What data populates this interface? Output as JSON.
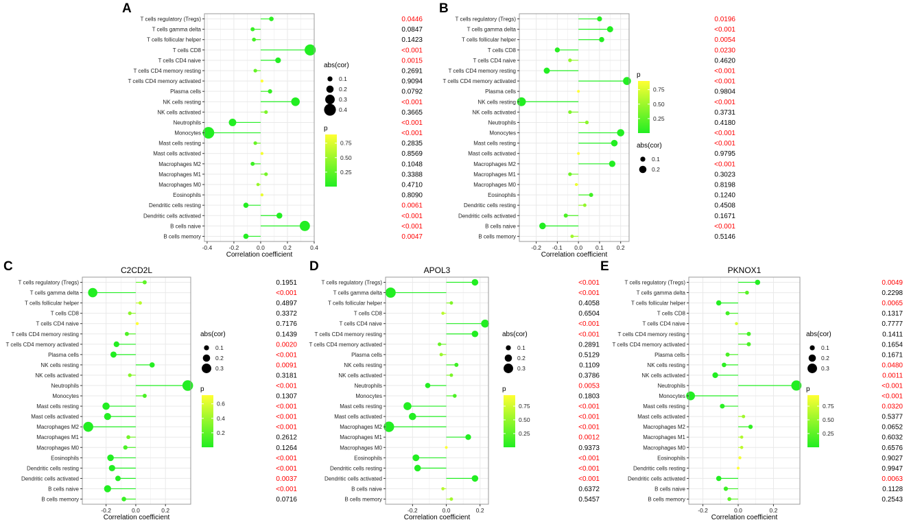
{
  "colors": {
    "sig": "#ff0000",
    "nonsig": "#000000",
    "low": "#22ee22",
    "high": "#ffff33",
    "grid": "#e9e9e9",
    "frame": "#999999",
    "fill": "#00000000"
  },
  "chart_data": [
    {
      "type": "lollipop",
      "panel": "A",
      "title": "",
      "xlabel": "Correlation coefficient",
      "xlim": [
        -0.42,
        0.4
      ],
      "xticks": [
        -0.4,
        -0.2,
        0.0,
        0.2,
        0.4
      ],
      "xtick_labels": [
        "-0.4",
        "-0.2",
        "0.0",
        "0.2",
        "0.4"
      ],
      "categories": [
        "T cells regulatory (Tregs)",
        "T cells gamma delta",
        "T cells follicular helper",
        "T cells CD8",
        "T cells CD4 naive",
        "T cells CD4 memory resting",
        "T cells CD4 memory activated",
        "Plasma cells",
        "NK cells resting",
        "NK cells activated",
        "Neutrophils",
        "Monocytes",
        "Mast cells resting",
        "Mast cells activated",
        "Macrophages M2",
        "Macrophages M1",
        "Macrophages M0",
        "Eosinophils",
        "Dendritic cells resting",
        "Dendritic cells activated",
        "B cells naive",
        "B cells memory"
      ],
      "values": [
        0.08,
        -0.06,
        -0.05,
        0.37,
        0.13,
        -0.04,
        0.01,
        0.07,
        0.26,
        0.04,
        -0.21,
        -0.39,
        -0.04,
        0.01,
        -0.06,
        0.04,
        -0.02,
        0.01,
        -0.11,
        0.14,
        0.33,
        -0.11
      ],
      "p_values": [
        0.0446,
        0.0847,
        0.1423,
        0.0001,
        0.0015,
        0.2691,
        0.9094,
        0.0792,
        0.0001,
        0.3665,
        0.0001,
        0.0001,
        0.2835,
        0.8569,
        0.1048,
        0.3388,
        0.471,
        0.809,
        0.0061,
        0.0001,
        0.0001,
        0.0047
      ],
      "p_labels": [
        "0.0446",
        "0.0847",
        "0.1423",
        "<0.001",
        "0.0015",
        "0.2691",
        "0.9094",
        "0.0792",
        "<0.001",
        "0.3665",
        "<0.001",
        "<0.001",
        "0.2835",
        "0.8569",
        "0.1048",
        "0.3388",
        "0.4710",
        "0.8090",
        "0.0061",
        "<0.001",
        "<0.001",
        "0.0047"
      ],
      "size_legend": {
        "title": "abs(cor)",
        "labels": [
          "0.1",
          "0.2",
          "0.3",
          "0.4"
        ],
        "values": [
          0.1,
          0.2,
          0.3,
          0.4
        ]
      },
      "color_legend": {
        "title": "p",
        "labels": [
          "0.75",
          "0.50",
          "0.25"
        ],
        "values": [
          0.75,
          0.5,
          0.25
        ],
        "range": [
          0,
          0.9
        ]
      },
      "legend_order": "size-first"
    },
    {
      "type": "lollipop",
      "panel": "B",
      "title": "",
      "xlabel": "Correlation coefficient",
      "xlim": [
        -0.28,
        0.24
      ],
      "xticks": [
        -0.2,
        -0.1,
        0.0,
        0.1,
        0.2
      ],
      "xtick_labels": [
        "-0.2",
        "-0.1",
        "0.0",
        "0.1",
        "0.2"
      ],
      "categories": [
        "T cells regulatory (Tregs)",
        "T cells gamma delta",
        "T cells follicular helper",
        "T cells CD8",
        "T cells CD4 naive",
        "T cells CD4 memory resting",
        "T cells CD4 memory activated",
        "Plasma cells",
        "NK cells resting",
        "NK cells activated",
        "Neutrophils",
        "Monocytes",
        "Mast cells resting",
        "Mast cells activated",
        "Macrophages M2",
        "Macrophages M1",
        "Macrophages M0",
        "Eosinophils",
        "Dendritic cells resting",
        "Dendritic cells activated",
        "B cells naive",
        "B cells memory"
      ],
      "values": [
        0.1,
        0.15,
        0.11,
        -0.1,
        -0.04,
        -0.15,
        0.23,
        0.0,
        -0.27,
        -0.04,
        0.04,
        0.2,
        0.17,
        0.0,
        0.16,
        -0.04,
        -0.01,
        0.06,
        0.03,
        -0.06,
        -0.17,
        -0.03
      ],
      "p_values": [
        0.0196,
        0.0001,
        0.0054,
        0.023,
        0.462,
        0.0001,
        0.0001,
        0.9804,
        0.0001,
        0.3731,
        0.418,
        0.0001,
        0.0001,
        0.9795,
        0.0001,
        0.3023,
        0.8198,
        0.124,
        0.4508,
        0.1671,
        0.0001,
        0.5146
      ],
      "p_labels": [
        "0.0196",
        "<0.001",
        "0.0054",
        "0.0230",
        "0.4620",
        "<0.001",
        "<0.001",
        "0.9804",
        "<0.001",
        "0.3731",
        "0.4180",
        "<0.001",
        "<0.001",
        "0.9795",
        "<0.001",
        "0.3023",
        "0.8198",
        "0.1240",
        "0.4508",
        "0.1671",
        "<0.001",
        "0.5146"
      ],
      "size_legend": {
        "title": "abs(cor)",
        "labels": [
          "0.1",
          "0.2"
        ],
        "values": [
          0.1,
          0.2
        ]
      },
      "color_legend": {
        "title": "p",
        "labels": [
          "0.75",
          "0.50",
          "0.25"
        ],
        "values": [
          0.75,
          0.5,
          0.25
        ],
        "range": [
          0,
          0.9
        ]
      },
      "legend_order": "color-first"
    },
    {
      "type": "lollipop",
      "panel": "C",
      "title": "C2CD2L",
      "xlabel": "Correlation coefficient",
      "xlim": [
        -0.36,
        0.37
      ],
      "xticks": [
        -0.2,
        0.0,
        0.2
      ],
      "xtick_labels": [
        "-0.2",
        "0.0",
        "0.2"
      ],
      "categories": [
        "T cells regulatory (Tregs)",
        "T cells gamma delta",
        "T cells follicular helper",
        "T cells CD8",
        "T cells CD4 naive",
        "T cells CD4 memory resting",
        "T cells CD4 memory activated",
        "Plasma cells",
        "NK cells resting",
        "NK cells activated",
        "Neutrophils",
        "Monocytes",
        "Mast cells resting",
        "Mast cells activated",
        "Macrophages M2",
        "Macrophages M1",
        "Macrophages M0",
        "Eosinophils",
        "Dendritic cells resting",
        "Dendritic cells activated",
        "B cells naive",
        "B cells memory"
      ],
      "values": [
        0.06,
        -0.29,
        0.03,
        -0.04,
        0.01,
        -0.06,
        -0.13,
        -0.15,
        0.11,
        -0.04,
        0.35,
        0.06,
        -0.2,
        -0.19,
        -0.32,
        -0.05,
        -0.07,
        -0.17,
        -0.16,
        -0.12,
        -0.19,
        -0.08
      ],
      "p_values": [
        0.1951,
        0.0001,
        0.4897,
        0.3372,
        0.7176,
        0.1439,
        0.002,
        0.0001,
        0.0091,
        0.3181,
        0.0001,
        0.1307,
        0.0001,
        0.0001,
        0.0001,
        0.2612,
        0.1264,
        0.0001,
        0.0001,
        0.0037,
        0.0001,
        0.0716
      ],
      "p_labels": [
        "0.1951",
        "<0.001",
        "0.4897",
        "0.3372",
        "0.7176",
        "0.1439",
        "0.0020",
        "<0.001",
        "0.0091",
        "0.3181",
        "<0.001",
        "0.1307",
        "<0.001",
        "<0.001",
        "<0.001",
        "0.2612",
        "0.1264",
        "<0.001",
        "<0.001",
        "0.0037",
        "<0.001",
        "0.0716"
      ],
      "size_legend": {
        "title": "abs(cor)",
        "labels": [
          "0.1",
          "0.2",
          "0.3"
        ],
        "values": [
          0.1,
          0.2,
          0.3
        ]
      },
      "color_legend": {
        "title": "p",
        "labels": [
          "0.6",
          "0.4",
          "0.2"
        ],
        "values": [
          0.6,
          0.4,
          0.2
        ],
        "range": [
          0,
          0.72
        ]
      },
      "legend_order": "size-first"
    },
    {
      "type": "lollipop",
      "panel": "D",
      "title": "APOL3",
      "xlabel": "Correlation coefficient",
      "xlim": [
        -0.36,
        0.25
      ],
      "xticks": [
        -0.2,
        0.0,
        0.2
      ],
      "xtick_labels": [
        "-0.2",
        "0.0",
        "0.2"
      ],
      "categories": [
        "T cells regulatory (Tregs)",
        "T cells gamma delta",
        "T cells follicular helper",
        "T cells CD8",
        "T cells CD4 naive",
        "T cells CD4 memory resting",
        "T cells CD4 memory activated",
        "Plasma cells",
        "NK cells resting",
        "NK cells activated",
        "Neutrophils",
        "Monocytes",
        "Mast cells resting",
        "Mast cells activated",
        "Macrophages M2",
        "Macrophages M1",
        "Macrophages M0",
        "Eosinophils",
        "Dendritic cells resting",
        "Dendritic cells activated",
        "B cells naive",
        "B cells memory"
      ],
      "values": [
        0.17,
        -0.33,
        0.03,
        -0.02,
        0.23,
        0.17,
        -0.04,
        -0.03,
        0.06,
        0.03,
        -0.11,
        0.05,
        -0.23,
        -0.2,
        -0.34,
        0.13,
        0.0,
        -0.18,
        -0.17,
        0.17,
        -0.02,
        0.03
      ],
      "p_values": [
        0.0001,
        0.0001,
        0.4058,
        0.6504,
        0.0001,
        0.0001,
        0.2891,
        0.5129,
        0.1109,
        0.3786,
        0.0053,
        0.1803,
        0.0001,
        0.0001,
        0.0001,
        0.0012,
        0.9373,
        0.0001,
        0.0001,
        0.0001,
        0.6372,
        0.5457
      ],
      "p_labels": [
        "<0.001",
        "<0.001",
        "0.4058",
        "0.6504",
        "<0.001",
        "<0.001",
        "0.2891",
        "0.5129",
        "0.1109",
        "0.3786",
        "0.0053",
        "0.1803",
        "<0.001",
        "<0.001",
        "<0.001",
        "0.0012",
        "0.9373",
        "<0.001",
        "<0.001",
        "<0.001",
        "0.6372",
        "0.5457"
      ],
      "size_legend": {
        "title": "abs(cor)",
        "labels": [
          "0.1",
          "0.2",
          "0.3"
        ],
        "values": [
          0.1,
          0.2,
          0.3
        ]
      },
      "color_legend": {
        "title": "p",
        "labels": [
          "0.75",
          "0.50",
          "0.25"
        ],
        "values": [
          0.75,
          0.5,
          0.25
        ],
        "range": [
          0,
          0.95
        ]
      },
      "legend_order": "size-first"
    },
    {
      "type": "lollipop",
      "panel": "E",
      "title": "PKNOX1",
      "xlabel": "Correlation coefficient",
      "xlim": [
        -0.28,
        0.35
      ],
      "xticks": [
        -0.2,
        0.0,
        0.2
      ],
      "xtick_labels": [
        "-0.2",
        "0.0",
        "0.2"
      ],
      "categories": [
        "T cells regulatory (Tregs)",
        "T cells gamma delta",
        "T cells follicular helper",
        "T cells CD8",
        "T cells CD4 naive",
        "T cells CD4 memory resting",
        "T cells CD4 memory activated",
        "Plasma cells",
        "NK cells resting",
        "NK cells activated",
        "Neutrophils",
        "Monocytes",
        "Mast cells resting",
        "Mast cells activated",
        "Macrophages M2",
        "Macrophages M1",
        "Macrophages M0",
        "Eosinophils",
        "Dendritic cells resting",
        "Dendritic cells activated",
        "B cells naive",
        "B cells memory"
      ],
      "values": [
        0.11,
        0.05,
        -0.11,
        -0.06,
        -0.01,
        0.06,
        0.06,
        -0.06,
        -0.08,
        -0.13,
        0.33,
        -0.27,
        -0.09,
        0.03,
        0.07,
        0.02,
        0.02,
        0.01,
        0.0,
        -0.11,
        -0.07,
        -0.05
      ],
      "p_values": [
        0.0049,
        0.2298,
        0.0065,
        0.1317,
        0.7777,
        0.1411,
        0.1654,
        0.1671,
        0.048,
        0.0011,
        0.0001,
        0.0001,
        0.032,
        0.5377,
        0.0652,
        0.6032,
        0.6576,
        0.9027,
        0.9947,
        0.0063,
        0.1128,
        0.2543
      ],
      "p_labels": [
        "0.0049",
        "0.2298",
        "0.0065",
        "0.1317",
        "0.7777",
        "0.1411",
        "0.1654",
        "0.1671",
        "0.0480",
        "0.0011",
        "<0.001",
        "<0.001",
        "0.0320",
        "0.5377",
        "0.0652",
        "0.6032",
        "0.6576",
        "0.9027",
        "0.9947",
        "0.0063",
        "0.1128",
        "0.2543"
      ],
      "size_legend": {
        "title": "abs(cor)",
        "labels": [
          "0.1",
          "0.2",
          "0.3"
        ],
        "values": [
          0.1,
          0.2,
          0.3
        ]
      },
      "color_legend": {
        "title": "p",
        "labels": [
          "0.75",
          "0.50",
          "0.25"
        ],
        "values": [
          0.75,
          0.5,
          0.25
        ],
        "range": [
          0,
          0.95
        ]
      },
      "legend_order": "size-first"
    }
  ]
}
